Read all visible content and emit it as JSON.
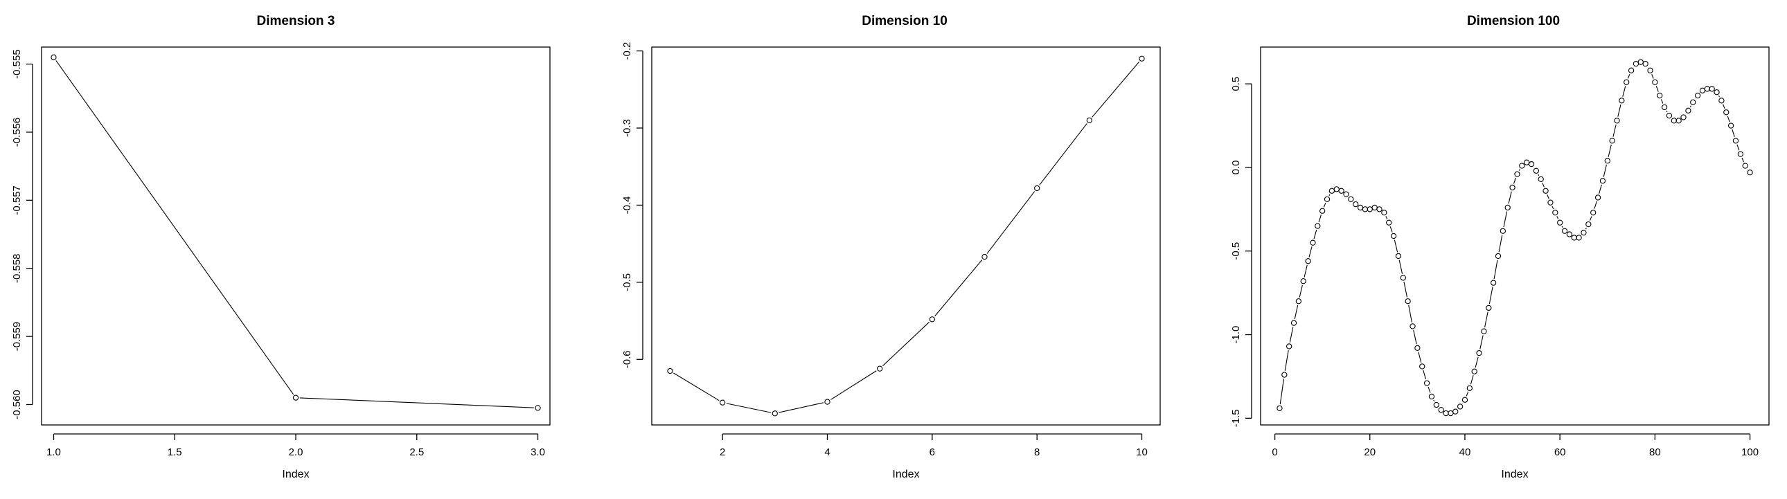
{
  "chart_data": [
    {
      "type": "line",
      "title": "Dimension 3",
      "xlabel": "Index",
      "ylabel": "",
      "xlim": [
        0.95,
        3.05
      ],
      "ylim": [
        -0.5603,
        -0.55475
      ],
      "xticks": [
        1.0,
        1.5,
        2.0,
        2.5,
        3.0
      ],
      "xtick_labels": [
        "1.0",
        "1.5",
        "2.0",
        "2.5",
        "3.0"
      ],
      "yticks": [
        -0.555,
        -0.556,
        -0.557,
        -0.558,
        -0.559,
        -0.56
      ],
      "ytick_labels": [
        "-0.555",
        "-0.556",
        "-0.557",
        "-0.558",
        "-0.559",
        "-0.560"
      ],
      "grid": false,
      "legend": "none",
      "x": [
        1,
        2,
        3
      ],
      "y": [
        -0.5549,
        -0.5599,
        -0.56005
      ]
    },
    {
      "type": "line",
      "title": "Dimension 10",
      "xlabel": "Index",
      "ylabel": "",
      "xlim": [
        0.65,
        10.35
      ],
      "ylim": [
        -0.685,
        -0.195
      ],
      "xticks": [
        2,
        4,
        6,
        8,
        10
      ],
      "xtick_labels": [
        "2",
        "4",
        "6",
        "8",
        "10"
      ],
      "yticks": [
        -0.2,
        -0.3,
        -0.4,
        -0.5,
        -0.6
      ],
      "ytick_labels": [
        "-0.2",
        "-0.3",
        "-0.4",
        "-0.5",
        "-0.6"
      ],
      "grid": false,
      "legend": "none",
      "x": [
        1,
        2,
        3,
        4,
        5,
        6,
        7,
        8,
        9,
        10
      ],
      "y": [
        -0.615,
        -0.656,
        -0.67,
        -0.655,
        -0.612,
        -0.548,
        -0.467,
        -0.378,
        -0.29,
        -0.21
      ]
    },
    {
      "type": "line",
      "title": "Dimension 100",
      "xlabel": "Index",
      "ylabel": "",
      "xlim": [
        -3,
        104
      ],
      "ylim": [
        -1.54,
        0.72
      ],
      "xticks": [
        0,
        20,
        40,
        60,
        80,
        100
      ],
      "xtick_labels": [
        "0",
        "20",
        "40",
        "60",
        "80",
        "100"
      ],
      "yticks": [
        0.5,
        0.0,
        -0.5,
        -1.0,
        -1.5
      ],
      "ytick_labels": [
        "0.5",
        "0.0",
        "-0.5",
        "-1.0",
        "-1.5"
      ],
      "grid": false,
      "legend": "none",
      "x": [
        1,
        2,
        3,
        4,
        5,
        6,
        7,
        8,
        9,
        10,
        11,
        12,
        13,
        14,
        15,
        16,
        17,
        18,
        19,
        20,
        21,
        22,
        23,
        24,
        25,
        26,
        27,
        28,
        29,
        30,
        31,
        32,
        33,
        34,
        35,
        36,
        37,
        38,
        39,
        40,
        41,
        42,
        43,
        44,
        45,
        46,
        47,
        48,
        49,
        50,
        51,
        52,
        53,
        54,
        55,
        56,
        57,
        58,
        59,
        60,
        61,
        62,
        63,
        64,
        65,
        66,
        67,
        68,
        69,
        70,
        71,
        72,
        73,
        74,
        75,
        76,
        77,
        78,
        79,
        80,
        81,
        82,
        83,
        84,
        85,
        86,
        87,
        88,
        89,
        90,
        91,
        92,
        93,
        94,
        95,
        96,
        97,
        98,
        99,
        100
      ],
      "y": [
        -1.44,
        -1.24,
        -1.07,
        -0.93,
        -0.8,
        -0.68,
        -0.56,
        -0.45,
        -0.35,
        -0.26,
        -0.19,
        -0.14,
        -0.13,
        -0.14,
        -0.16,
        -0.19,
        -0.22,
        -0.24,
        -0.25,
        -0.25,
        -0.24,
        -0.25,
        -0.27,
        -0.33,
        -0.41,
        -0.53,
        -0.66,
        -0.8,
        -0.95,
        -1.08,
        -1.19,
        -1.29,
        -1.37,
        -1.42,
        -1.45,
        -1.47,
        -1.47,
        -1.46,
        -1.43,
        -1.39,
        -1.32,
        -1.22,
        -1.11,
        -0.98,
        -0.84,
        -0.69,
        -0.53,
        -0.38,
        -0.24,
        -0.12,
        -0.04,
        0.01,
        0.03,
        0.02,
        -0.02,
        -0.07,
        -0.14,
        -0.21,
        -0.27,
        -0.33,
        -0.38,
        -0.4,
        -0.42,
        -0.42,
        -0.39,
        -0.34,
        -0.27,
        -0.18,
        -0.08,
        0.04,
        0.16,
        0.28,
        0.4,
        0.51,
        0.58,
        0.62,
        0.63,
        0.62,
        0.58,
        0.51,
        0.43,
        0.36,
        0.31,
        0.28,
        0.28,
        0.3,
        0.34,
        0.39,
        0.43,
        0.46,
        0.47,
        0.47,
        0.45,
        0.4,
        0.33,
        0.25,
        0.16,
        0.08,
        0.01,
        -0.03
      ]
    }
  ]
}
